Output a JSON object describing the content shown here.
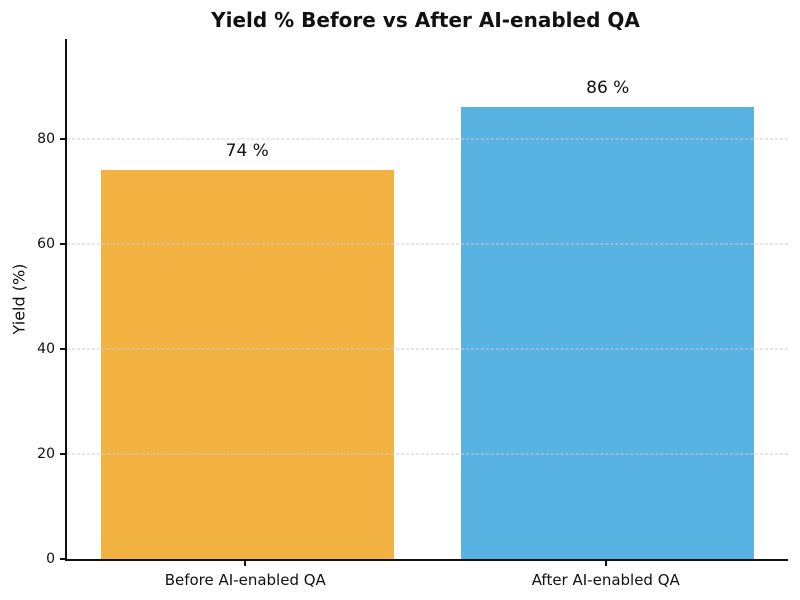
{
  "chart_data": {
    "type": "bar",
    "title": "Yield % Before vs After AI-enabled QA",
    "ylabel": "Yield (%)",
    "xlabel": "",
    "categories": [
      "Before AI-enabled QA",
      "After AI-enabled QA"
    ],
    "values": [
      74,
      86
    ],
    "value_labels": [
      "74 %",
      "86 %"
    ],
    "bar_colors": [
      "#F2B342",
      "#58B2E2"
    ],
    "ylim": [
      0,
      99
    ],
    "yticks": [
      0,
      20,
      40,
      60,
      80
    ],
    "grid": {
      "axis": "y",
      "style": "dashed",
      "color": "#CCCCCC",
      "above_bars": true
    },
    "legend": "none",
    "background": "#FFFFFF",
    "spines": [
      "left",
      "bottom"
    ]
  }
}
